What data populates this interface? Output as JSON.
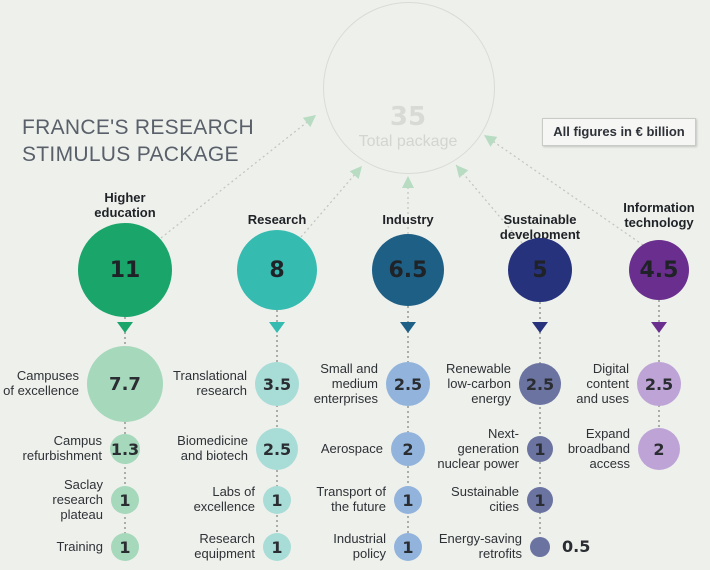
{
  "title_lines": [
    "FRANCE'S RESEARCH",
    "STIMULUS PACKAGE"
  ],
  "note": "All figures in € billion",
  "total": {
    "value": "35",
    "label": "Total package"
  },
  "columns": [
    {
      "name": "Higher education",
      "name_lines": [
        "Higher",
        "education"
      ],
      "value": "11",
      "color": "#1aa56a",
      "sub_color": "#a6d8bb",
      "items": [
        {
          "label": "Campuses of excellence",
          "label_lines": [
            "Campuses",
            "of excellence"
          ],
          "value": "7.7"
        },
        {
          "label": "Campus refurbishment",
          "label_lines": [
            "Campus",
            "refurbishment"
          ],
          "value": "1.3"
        },
        {
          "label": "Saclay research plateau",
          "label_lines": [
            "Saclay",
            "research",
            "plateau"
          ],
          "value": "1"
        },
        {
          "label": "Training",
          "label_lines": [
            "Training"
          ],
          "value": "1"
        }
      ]
    },
    {
      "name": "Research",
      "name_lines": [
        "Research"
      ],
      "value": "8",
      "color": "#35bbb0",
      "sub_color": "#a8dcd6",
      "items": [
        {
          "label": "Translational research",
          "label_lines": [
            "Translational",
            "research"
          ],
          "value": "3.5"
        },
        {
          "label": "Biomedicine and biotech",
          "label_lines": [
            "Biomedicine",
            "and biotech"
          ],
          "value": "2.5"
        },
        {
          "label": "Labs of excellence",
          "label_lines": [
            "Labs of",
            "excellence"
          ],
          "value": "1"
        },
        {
          "label": "Research equipment",
          "label_lines": [
            "Research",
            "equipment"
          ],
          "value": "1"
        }
      ]
    },
    {
      "name": "Industry",
      "name_lines": [
        "Industry"
      ],
      "value": "6.5",
      "color": "#1e5f86",
      "sub_color": "#92b4dc",
      "items": [
        {
          "label": "Small and medium enterprises",
          "label_lines": [
            "Small and",
            "medium",
            "enterprises"
          ],
          "value": "2.5"
        },
        {
          "label": "Aerospace",
          "label_lines": [
            "Aerospace"
          ],
          "value": "2"
        },
        {
          "label": "Transport of the future",
          "label_lines": [
            "Transport of",
            "the future"
          ],
          "value": "1"
        },
        {
          "label": "Industrial policy",
          "label_lines": [
            "Industrial",
            "policy"
          ],
          "value": "1"
        }
      ]
    },
    {
      "name": "Sustainable development",
      "name_lines": [
        "Sustainable",
        "development"
      ],
      "value": "5",
      "color": "#27327c",
      "sub_color": "#6b73a1",
      "items": [
        {
          "label": "Renewable low-carbon energy",
          "label_lines": [
            "Renewable",
            "low-carbon",
            "energy"
          ],
          "value": "2.5"
        },
        {
          "label": "Next-generation nuclear power",
          "label_lines": [
            "Next-",
            "generation",
            "nuclear power"
          ],
          "value": "1"
        },
        {
          "label": "Sustainable cities",
          "label_lines": [
            "Sustainable",
            "cities"
          ],
          "value": "1"
        },
        {
          "label": "Energy-saving retrofits",
          "label_lines": [
            "Energy-saving",
            "retrofits"
          ],
          "value": "0.5"
        }
      ]
    },
    {
      "name": "Information technology",
      "name_lines": [
        "Information",
        "technology"
      ],
      "value": "4.5",
      "color": "#6a2f8e",
      "sub_color": "#bea4d6",
      "items": [
        {
          "label": "Digital content and uses",
          "label_lines": [
            "Digital",
            "content",
            "and uses"
          ],
          "value": "2.5"
        },
        {
          "label": "Expand broadband access",
          "label_lines": [
            "Expand",
            "broadband",
            "access"
          ],
          "value": "2"
        }
      ]
    }
  ]
}
